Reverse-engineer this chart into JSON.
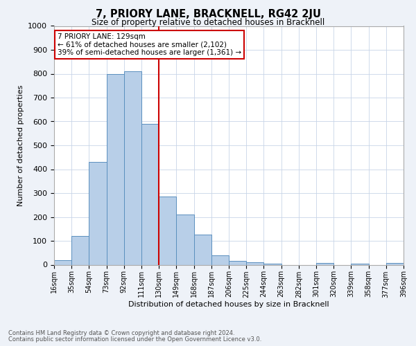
{
  "title": "7, PRIORY LANE, BRACKNELL, RG42 2JU",
  "subtitle": "Size of property relative to detached houses in Bracknell",
  "xlabel": "Distribution of detached houses by size in Bracknell",
  "ylabel": "Number of detached properties",
  "footnote1": "Contains HM Land Registry data © Crown copyright and database right 2024.",
  "footnote2": "Contains public sector information licensed under the Open Government Licence v3.0.",
  "bar_labels": [
    "16sqm",
    "35sqm",
    "54sqm",
    "73sqm",
    "92sqm",
    "111sqm",
    "130sqm",
    "149sqm",
    "168sqm",
    "187sqm",
    "206sqm",
    "225sqm",
    "244sqm",
    "263sqm",
    "282sqm",
    "301sqm",
    "320sqm",
    "339sqm",
    "358sqm",
    "377sqm",
    "396sqm"
  ],
  "bar_values": [
    20,
    120,
    430,
    800,
    810,
    590,
    285,
    210,
    125,
    40,
    15,
    10,
    5,
    0,
    0,
    7,
    0,
    5,
    0,
    8
  ],
  "bar_color": "#b8cfe8",
  "bar_edge_color": "#5a8fbe",
  "vline_color": "#cc0000",
  "annotation_text": "7 PRIORY LANE: 129sqm\n← 61% of detached houses are smaller (2,102)\n39% of semi-detached houses are larger (1,361) →",
  "annotation_box_color": "#cc0000",
  "ylim": [
    0,
    1000
  ],
  "yticks": [
    0,
    100,
    200,
    300,
    400,
    500,
    600,
    700,
    800,
    900,
    1000
  ],
  "bg_color": "#eef2f8",
  "plot_bg_color": "#ffffff",
  "grid_color": "#c8d4e8"
}
